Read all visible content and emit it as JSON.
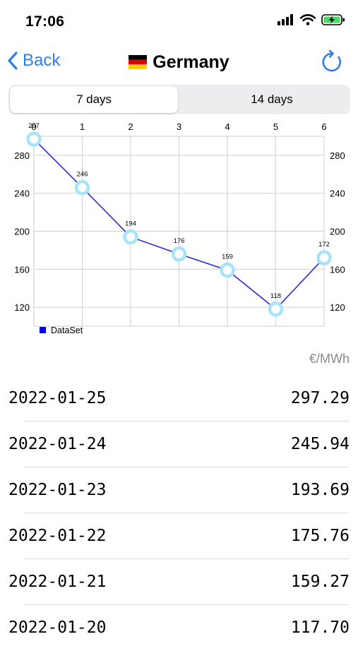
{
  "status_bar": {
    "time": "17:06"
  },
  "nav": {
    "back_label": "Back",
    "title": "Germany",
    "flag": "de-flag"
  },
  "tabs": [
    {
      "label": "7 days",
      "selected": true
    },
    {
      "label": "14 days",
      "selected": false
    }
  ],
  "chart_data": {
    "type": "line",
    "x": [
      0,
      1,
      2,
      3,
      4,
      5,
      6
    ],
    "series": [
      {
        "name": "DataSet",
        "values": [
          297,
          246,
          194,
          176,
          159,
          118,
          172
        ],
        "color": "#2b2bd6"
      }
    ],
    "y_ticks": [
      120,
      160,
      200,
      240,
      280
    ],
    "ylim": [
      100,
      300
    ],
    "grid": true,
    "legend": "bottom-left",
    "point_color": "#a8e4f7"
  },
  "unit": "€/MWh",
  "rows": [
    {
      "date": "2022-01-25",
      "value": "297.29"
    },
    {
      "date": "2022-01-24",
      "value": "245.94"
    },
    {
      "date": "2022-01-23",
      "value": "193.69"
    },
    {
      "date": "2022-01-22",
      "value": "175.76"
    },
    {
      "date": "2022-01-21",
      "value": "159.27"
    },
    {
      "date": "2022-01-20",
      "value": "117.70"
    }
  ]
}
